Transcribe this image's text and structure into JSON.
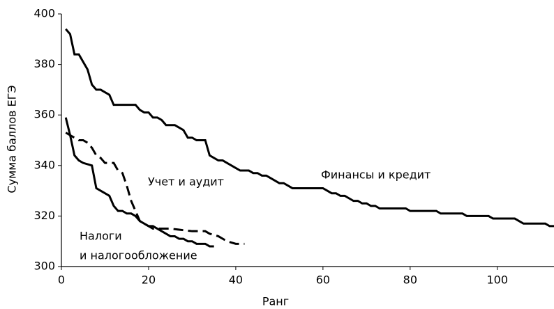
{
  "chart_data": {
    "type": "line",
    "xlabel": "Ранг",
    "ylabel": "Сумма баллов  ЕГЭ",
    "annotations": [
      "Финансы и кредит",
      "Учет и аудит",
      "Налоги",
      "и налогообложение"
    ],
    "xlim": [
      0,
      113
    ],
    "xticks": [
      0,
      20,
      40,
      60,
      80,
      100
    ],
    "ylim": [
      300,
      400
    ],
    "yticks": [
      300,
      320,
      340,
      360,
      380,
      400
    ],
    "grid": false,
    "series": [
      {
        "color": "#000000",
        "dash": "solid",
        "x": [
          1,
          2,
          3,
          4,
          5,
          6,
          7,
          8,
          9,
          10,
          11,
          12,
          17,
          18,
          19,
          20,
          21,
          22,
          23,
          24,
          26,
          27,
          28,
          29,
          30,
          31,
          33,
          34,
          35,
          36,
          37,
          38,
          39,
          40,
          41,
          43,
          44,
          45,
          46,
          47,
          48,
          49,
          50,
          51,
          52,
          53,
          60,
          61,
          62,
          63,
          64,
          65,
          66,
          67,
          68,
          69,
          70,
          71,
          72,
          73,
          79,
          80,
          86,
          87,
          92,
          93,
          98,
          99,
          104,
          105,
          106,
          111,
          112,
          113
        ],
        "values": [
          394,
          392,
          384,
          384,
          381,
          378,
          372,
          370,
          370,
          369,
          368,
          364,
          364,
          362,
          361,
          361,
          359,
          359,
          358,
          356,
          356,
          355,
          354,
          351,
          351,
          350,
          350,
          344,
          343,
          342,
          342,
          341,
          340,
          339,
          338,
          338,
          337,
          337,
          336,
          336,
          335,
          334,
          333,
          333,
          332,
          331,
          331,
          330,
          329,
          329,
          328,
          328,
          327,
          326,
          326,
          325,
          325,
          324,
          324,
          323,
          323,
          322,
          322,
          321,
          321,
          320,
          320,
          319,
          319,
          318,
          317,
          317,
          316,
          316
        ]
      },
      {
        "color": "#000000",
        "dash": "dashed",
        "x": [
          1,
          2,
          3,
          4,
          5,
          6,
          7,
          8,
          9,
          10,
          12,
          13,
          14,
          15,
          16,
          17,
          18,
          19,
          20,
          21,
          25,
          30,
          33,
          34,
          36,
          38,
          40,
          42
        ],
        "values": [
          353,
          352,
          351,
          350,
          350,
          349,
          347,
          344,
          343,
          341,
          341,
          338,
          337,
          332,
          326,
          322,
          318,
          317,
          316,
          315,
          315,
          314,
          314,
          313,
          312,
          310,
          309,
          309
        ]
      },
      {
        "color": "#000000",
        "dash": "solid",
        "x": [
          1,
          2,
          3,
          4,
          5,
          7,
          8,
          9,
          10,
          11,
          12,
          13,
          14,
          15,
          16,
          17,
          18,
          19,
          20,
          21,
          22,
          23,
          24,
          25,
          26,
          27,
          28,
          29,
          30,
          31,
          33,
          34,
          35
        ],
        "values": [
          359,
          352,
          344,
          342,
          341,
          340,
          331,
          330,
          329,
          328,
          324,
          322,
          322,
          321,
          321,
          320,
          318,
          317,
          316,
          316,
          315,
          314,
          313,
          312,
          312,
          311,
          311,
          310,
          310,
          309,
          309,
          308,
          308
        ]
      }
    ]
  }
}
